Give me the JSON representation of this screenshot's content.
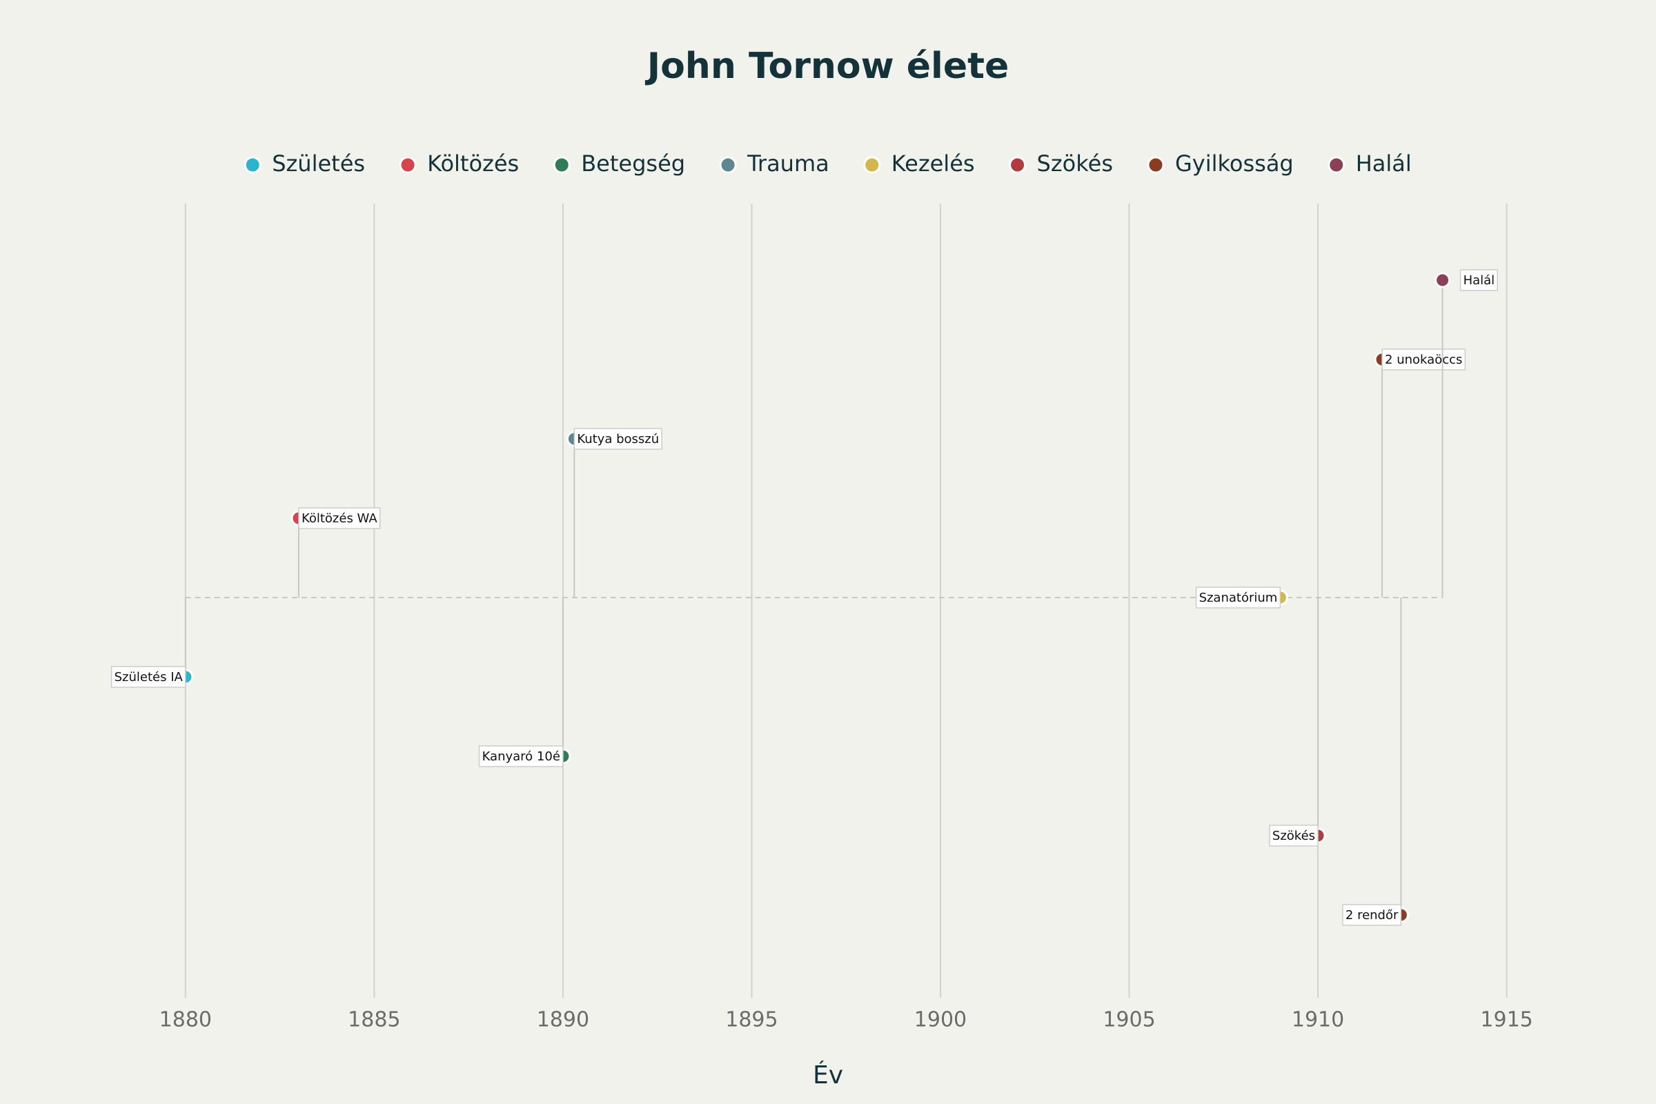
{
  "chart_data": {
    "type": "timeline",
    "title": "John Tornow élete",
    "x_label": "Év",
    "xlim": [
      1876,
      1917
    ],
    "xticks": [
      1880,
      1885,
      1890,
      1895,
      1900,
      1905,
      1910,
      1915
    ],
    "grid": true,
    "series": [
      {
        "name": "Születés",
        "color": "#29b5d0",
        "events": [
          {
            "x": 1880,
            "label": "Születés IA"
          }
        ]
      },
      {
        "name": "Költözés",
        "color": "#d9434b",
        "events": [
          {
            "x": 1883,
            "label": "Költözés WA"
          }
        ]
      },
      {
        "name": "Betegség",
        "color": "#2e7d58",
        "events": [
          {
            "x": 1890,
            "label": "Kanyaró 10é"
          }
        ]
      },
      {
        "name": "Trauma",
        "color": "#5f8790",
        "events": [
          {
            "x": 1890.3,
            "label": "Kutya bosszú"
          }
        ]
      },
      {
        "name": "Kezelés",
        "color": "#d4b64a",
        "events": [
          {
            "x": 1909,
            "label": "Szanatórium"
          }
        ]
      },
      {
        "name": "Szökés",
        "color": "#b53a3e",
        "events": [
          {
            "x": 1910,
            "label": "Szökés"
          }
        ]
      },
      {
        "name": "Gyilkosság",
        "color": "#8c3b1e",
        "events": [
          {
            "x": 1911.7,
            "label": "2 unokaöccs"
          },
          {
            "x": 1912.2,
            "label": "2 rendőr"
          }
        ]
      },
      {
        "name": "Halál",
        "color": "#8d3f57",
        "events": [
          {
            "x": 1913.3,
            "label": "Halál"
          }
        ]
      }
    ]
  }
}
